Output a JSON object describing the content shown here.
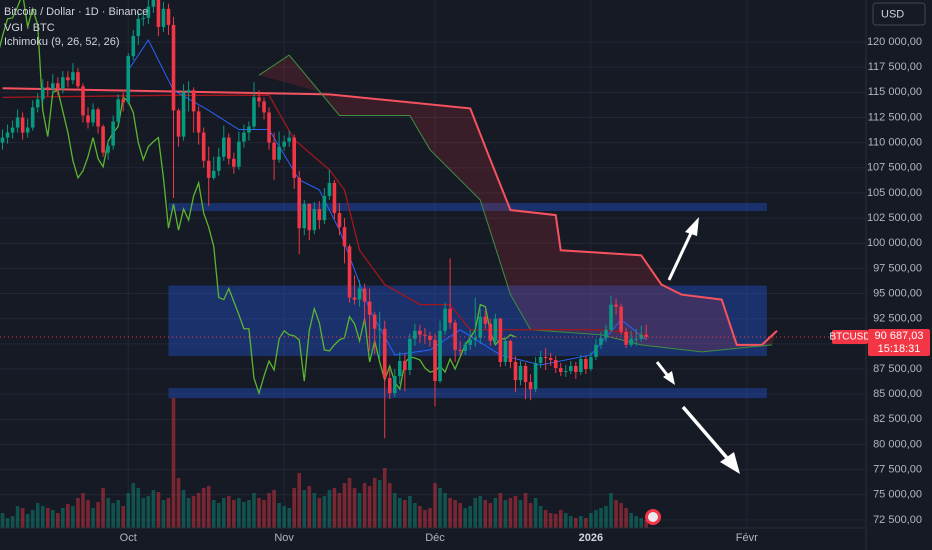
{
  "chart_data": {
    "type": "candlestick",
    "title": "Bitcoin / Dollar · 1D · Binance",
    "indicator_labels": [
      "VGI · BTC",
      "Ichimoku (9, 26, 52, 26)"
    ],
    "ichimoku_displacement": 26,
    "currency": "USD",
    "symbol": "BTCUSD",
    "countdown": "15:18:31",
    "last_price": {
      "value": 90687.03,
      "label": "90 687,03"
    },
    "up_color": "#089981",
    "down_color": "#f23645",
    "open": [
      110000,
      110500,
      111000,
      111500,
      112500,
      111000,
      111500,
      113500,
      114300,
      115500,
      115300,
      115900,
      115400,
      116500,
      116200,
      117000,
      115600,
      112700,
      112000,
      113300,
      111600,
      109000,
      109700,
      112100,
      114300,
      114000,
      118600,
      120600,
      122300,
      122400,
      123500,
      124800,
      121500,
      123300,
      121700,
      113200,
      110600,
      115000,
      115200,
      113100,
      111000,
      108200,
      106500,
      107200,
      108600,
      110500,
      108400,
      107600,
      110100,
      111000,
      111600,
      114500,
      114100,
      113000,
      110000,
      108300,
      109600,
      110100,
      110500,
      106500,
      101500,
      103900,
      101300,
      103400,
      102300,
      104700,
      106000,
      103000,
      101600,
      99700,
      94600,
      94400,
      95500,
      94200,
      92900,
      91500,
      91500,
      86600,
      85100,
      86800,
      88300,
      87400,
      90500,
      91300,
      90900,
      90800,
      90400,
      86300,
      91300,
      93500,
      92100,
      89400,
      89300,
      89900,
      90400,
      90600,
      92700,
      92000,
      90300,
      92500,
      88200,
      90300,
      88200,
      86400,
      87800,
      86200,
      85500,
      88100,
      88700,
      88600,
      88400,
      87600,
      87200,
      87300,
      87800,
      87200,
      88500,
      87500,
      88700,
      89900,
      90600,
      91400,
      93900,
      93700,
      91200,
      89900,
      90500,
      90500,
      90900
    ],
    "high": [
      111300,
      111800,
      112200,
      113300,
      113000,
      112400,
      114200,
      114900,
      116300,
      116100,
      116800,
      116500,
      117100,
      117100,
      117900,
      117400,
      115900,
      113500,
      113900,
      113500,
      111800,
      110300,
      112700,
      114800,
      115000,
      118900,
      121200,
      123000,
      123000,
      125100,
      126200,
      125200,
      124000,
      123800,
      122500,
      113400,
      115800,
      116100,
      115500,
      113600,
      111500,
      109600,
      108600,
      109500,
      111700,
      110900,
      109000,
      111100,
      111800,
      112100,
      116000,
      115200,
      114500,
      113500,
      111000,
      111100,
      110700,
      111200,
      110800,
      107200,
      104300,
      104000,
      104100,
      104200,
      105500,
      107300,
      106300,
      104000,
      102500,
      99900,
      96800,
      96300,
      96000,
      95500,
      93200,
      93200,
      92300,
      87500,
      87500,
      89200,
      89000,
      91000,
      92000,
      91900,
      91600,
      91200,
      91000,
      92300,
      94100,
      98500,
      92400,
      90300,
      90200,
      91400,
      94600,
      93500,
      93300,
      92500,
      93000,
      92600,
      90500,
      90400,
      88800,
      88300,
      88100,
      87000,
      88700,
      89300,
      89600,
      89100,
      88800,
      88100,
      87900,
      88300,
      88200,
      88900,
      88800,
      89200,
      90500,
      91200,
      91900,
      94800,
      94500,
      94000,
      91600,
      91300,
      91500,
      91800,
      91900
    ],
    "low": [
      109300,
      109900,
      110400,
      111000,
      110300,
      110500,
      111200,
      113000,
      113900,
      114600,
      114800,
      114700,
      114900,
      115500,
      115800,
      115200,
      112000,
      111400,
      111600,
      110900,
      108600,
      108300,
      109300,
      111700,
      113100,
      113800,
      118200,
      119700,
      121600,
      121800,
      122900,
      120600,
      121000,
      120700,
      104500,
      109600,
      110200,
      113100,
      111000,
      109800,
      107500,
      103700,
      106300,
      106700,
      108200,
      107800,
      106900,
      107300,
      109500,
      110200,
      111300,
      113500,
      112300,
      109300,
      106300,
      108000,
      109200,
      109600,
      105400,
      98900,
      100800,
      100300,
      100900,
      101400,
      101900,
      104300,
      102400,
      100800,
      98000,
      94100,
      93900,
      93700,
      92000,
      89300,
      89000,
      88500,
      80600,
      84500,
      84700,
      86000,
      85300,
      86900,
      89800,
      90100,
      90000,
      89700,
      83800,
      86100,
      90900,
      91500,
      88200,
      88800,
      88900,
      89400,
      89700,
      90000,
      91500,
      89800,
      90100,
      87700,
      87800,
      87600,
      85200,
      85900,
      84500,
      84400,
      85200,
      87600,
      87400,
      87800,
      87100,
      86800,
      86700,
      87000,
      86500,
      86900,
      87000,
      87300,
      88400,
      89500,
      90200,
      91200,
      92900,
      90900,
      89600,
      89700,
      89800,
      90200,
      90400
    ],
    "close": [
      110500,
      111000,
      111500,
      112500,
      111000,
      111500,
      113500,
      114300,
      115500,
      115300,
      115900,
      115400,
      116500,
      116200,
      117000,
      115600,
      112700,
      112000,
      113300,
      111600,
      109000,
      109700,
      112100,
      114300,
      114000,
      118600,
      120600,
      122300,
      122400,
      123500,
      124800,
      121500,
      123300,
      121700,
      113200,
      110600,
      115000,
      115200,
      113100,
      111000,
      108200,
      106500,
      107200,
      108600,
      110500,
      108400,
      107600,
      110100,
      111000,
      111600,
      114500,
      114100,
      113000,
      110000,
      108300,
      109600,
      110100,
      110500,
      106500,
      101500,
      103900,
      101300,
      103400,
      102300,
      104700,
      106000,
      103000,
      101600,
      99700,
      94600,
      94400,
      95500,
      94200,
      92900,
      91500,
      91500,
      86600,
      85100,
      86800,
      88300,
      87400,
      90500,
      91300,
      90900,
      90800,
      90400,
      86300,
      91300,
      93500,
      92100,
      89400,
      89300,
      89900,
      90400,
      90600,
      92700,
      92000,
      90300,
      92500,
      88200,
      90300,
      88200,
      86400,
      87800,
      86200,
      85500,
      88100,
      88700,
      88600,
      88400,
      87600,
      87200,
      87300,
      87800,
      87200,
      88500,
      87500,
      88700,
      89900,
      90600,
      91400,
      93900,
      93700,
      91200,
      89900,
      90500,
      90500,
      90900,
      90687.03
    ],
    "volume": [
      15,
      10,
      12,
      22,
      20,
      14,
      18,
      25,
      22,
      20,
      18,
      15,
      20,
      24,
      22,
      30,
      35,
      28,
      20,
      26,
      40,
      30,
      25,
      28,
      22,
      35,
      45,
      40,
      30,
      32,
      38,
      36,
      28,
      30,
      130,
      50,
      38,
      30,
      32,
      35,
      40,
      42,
      28,
      25,
      30,
      32,
      28,
      30,
      26,
      28,
      35,
      30,
      28,
      35,
      38,
      25,
      22,
      20,
      40,
      55,
      38,
      42,
      35,
      30,
      32,
      38,
      40,
      35,
      45,
      50,
      40,
      35,
      45,
      42,
      50,
      48,
      60,
      45,
      35,
      30,
      28,
      32,
      25,
      22,
      18,
      20,
      45,
      40,
      35,
      30,
      28,
      25,
      20,
      22,
      30,
      32,
      28,
      25,
      30,
      35,
      28,
      30,
      32,
      28,
      35,
      25,
      30,
      22,
      18,
      15,
      14,
      18,
      15,
      12,
      10,
      12,
      10,
      15,
      18,
      20,
      22,
      35,
      28,
      25,
      20,
      15,
      12,
      10,
      8
    ],
    "tenkan": {
      "color": "#2962ff",
      "x": [
        25,
        29,
        34,
        41,
        47,
        53,
        59,
        63,
        67,
        73,
        78,
        85,
        91,
        99,
        107,
        117,
        123,
        128
      ],
      "values": [
        117200,
        120200,
        115200,
        113200,
        111300,
        111300,
        106300,
        105300,
        101300,
        93400,
        88900,
        89400,
        91400,
        88900,
        87900,
        88900,
        92400,
        90400
      ]
    },
    "kijun": {
      "color": "#a3171c",
      "x": [
        0,
        33,
        53,
        58,
        65,
        68,
        71,
        76,
        83,
        89,
        93,
        103,
        119,
        128
      ],
      "values": [
        114500,
        114700,
        114700,
        110300,
        107300,
        105300,
        99300,
        95900,
        93900,
        93900,
        91400,
        91400,
        91400,
        90900
      ]
    },
    "span_a": {
      "color": "#3f8f3f",
      "x": [
        51,
        57,
        67,
        81,
        85,
        95,
        101,
        105,
        119,
        127,
        139,
        153
      ],
      "values": [
        116700,
        118700,
        112700,
        112700,
        109300,
        104300,
        94900,
        91400,
        90900,
        89900,
        89200,
        89900
      ]
    },
    "span_b": {
      "color": "#f7525f",
      "x": [
        0,
        65,
        81,
        93,
        97,
        101,
        110,
        111,
        127,
        131,
        135,
        143,
        146,
        151,
        154
      ],
      "values": [
        115400,
        114800,
        114000,
        113400,
        108300,
        103300,
        102800,
        99300,
        98800,
        95900,
        94900,
        94400,
        89900,
        89900,
        91300
      ]
    },
    "chikou_color": "#5cb531",
    "cloud_color": "rgba(242,54,69,0.16)",
    "zone_color": "rgba(41,98,255,0.32)",
    "zones": [
      {
        "x": [
          33,
          152
        ],
        "y": [
          103200,
          104000
        ]
      },
      {
        "x": [
          33,
          152
        ],
        "y": [
          88800,
          95800
        ]
      },
      {
        "x": [
          33,
          152
        ],
        "y": [
          84600,
          85600
        ]
      }
    ],
    "xlim": [
      -0.5,
      171.7
    ],
    "xticks": [
      {
        "value": 25,
        "label": "Oct"
      },
      {
        "value": 56,
        "label": "Nov"
      },
      {
        "value": 86,
        "label": "Déc"
      },
      {
        "value": 117,
        "label": "2026"
      },
      {
        "value": 148,
        "label": "Févr"
      }
    ],
    "ylim": [
      71700,
      124175
    ],
    "yticks": [
      {
        "value": 72500,
        "label": "72 500,00"
      },
      {
        "value": 75000,
        "label": "75 000,00"
      },
      {
        "value": 77500,
        "label": "77 500,00"
      },
      {
        "value": 80000,
        "label": "80 000,00"
      },
      {
        "value": 82500,
        "label": "82 500,00"
      },
      {
        "value": 85000,
        "label": "85 000,00"
      },
      {
        "value": 87500,
        "label": "87 500,00"
      },
      {
        "value": 90000,
        "label": "90 000,00"
      },
      {
        "value": 92500,
        "label": "92 500,00"
      },
      {
        "value": 95000,
        "label": "95 000,00"
      },
      {
        "value": 97500,
        "label": "97 500,00"
      },
      {
        "value": 100000,
        "label": "100 000,00"
      },
      {
        "value": 102500,
        "label": "102 500,00"
      },
      {
        "value": 105000,
        "label": "105 000,00"
      },
      {
        "value": 107500,
        "label": "107 500,00"
      },
      {
        "value": 110000,
        "label": "110 000,00"
      },
      {
        "value": 112500,
        "label": "112 500,00"
      },
      {
        "value": 115000,
        "label": "115 000,00"
      },
      {
        "value": 117500,
        "label": "117 500,00"
      },
      {
        "value": 120000,
        "label": "120 000,00"
      }
    ],
    "grid": true
  }
}
